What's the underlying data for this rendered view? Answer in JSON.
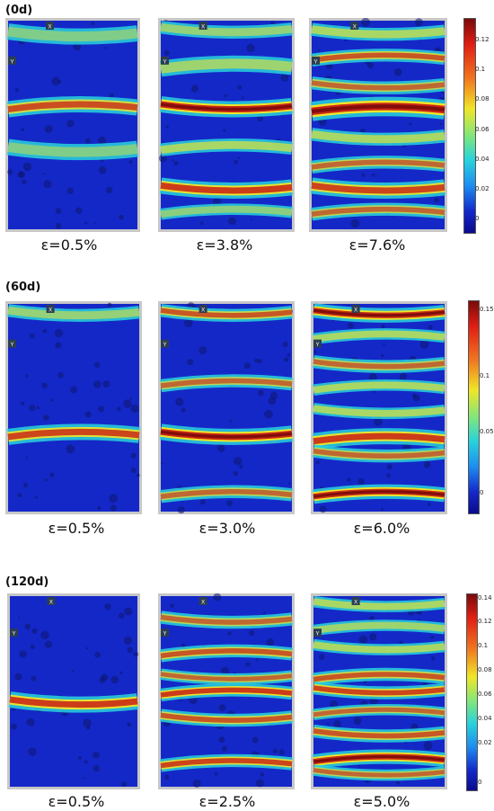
{
  "colors": {
    "blue": "#1428c8",
    "cyan": "#28d2dc",
    "yellow": "#f0e628",
    "red": "#c81e14",
    "dark_red": "#7a0a0a",
    "frame": "#c7c7c7"
  },
  "axis_marks": {
    "x": "X",
    "y": "Y"
  },
  "groups": [
    {
      "label": "(0d)",
      "strains": [
        "ε=0.5%",
        "ε=3.8%",
        "ε=7.6%"
      ],
      "colorbar_ticks": [
        "0.12",
        "0.1",
        "0.08",
        "0.06",
        "0.04",
        "0.02",
        "0"
      ]
    },
    {
      "label": "(60d)",
      "strains": [
        "ε=0.5%",
        "ε=3.0%",
        "ε=6.0%"
      ],
      "colorbar_ticks": [
        "0.15",
        "0.1",
        "0.05",
        "0"
      ]
    },
    {
      "label": "(120d)",
      "strains": [
        "ε=0.5%",
        "ε=2.5%",
        "ε=5.0%"
      ],
      "colorbar_ticks": [
        "0.14",
        "0.12",
        "0.1",
        "0.08",
        "0.06",
        "0.04",
        "0.02",
        "0"
      ]
    }
  ]
}
